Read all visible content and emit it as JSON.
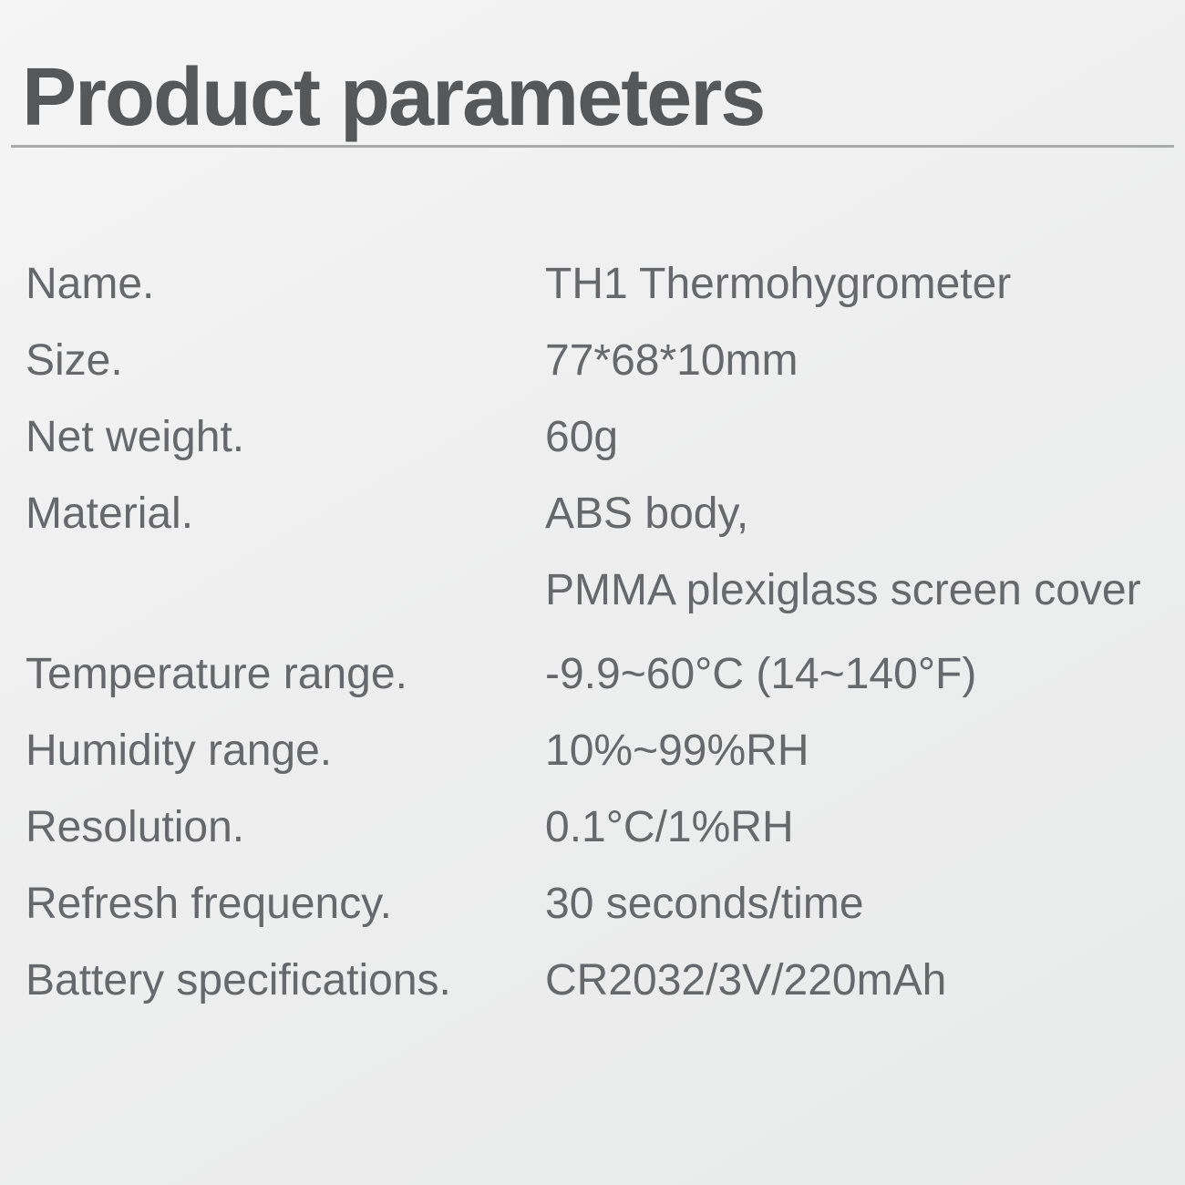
{
  "page": {
    "title": "Product parameters"
  },
  "specs": {
    "rows": [
      {
        "label": "Name.",
        "value": "TH1 Thermohygrometer"
      },
      {
        "label": "Size.",
        "value": "77*68*10mm"
      },
      {
        "label": "Net weight.",
        "value": "60g"
      },
      {
        "label": "Material.",
        "value": "ABS body,",
        "value2": "PMMA plexiglass screen cover"
      },
      {
        "label": "Temperature range.",
        "value": "-9.9~60°C (14~140°F)"
      },
      {
        "label": "Humidity range.",
        "value": "10%~99%RH"
      },
      {
        "label": "Resolution.",
        "value": "0.1°C/1%RH"
      },
      {
        "label": "Refresh frequency.",
        "value": "30 seconds/time"
      },
      {
        "label": "Battery specifications.",
        "value": "CR2032/3V/220mAh"
      }
    ]
  },
  "colors": {
    "title_text": "#565759",
    "body_text": "#66686b",
    "divider": "#a8aaaa",
    "background_top": "#f5f5f5",
    "background_bottom": "#e9eaea"
  }
}
